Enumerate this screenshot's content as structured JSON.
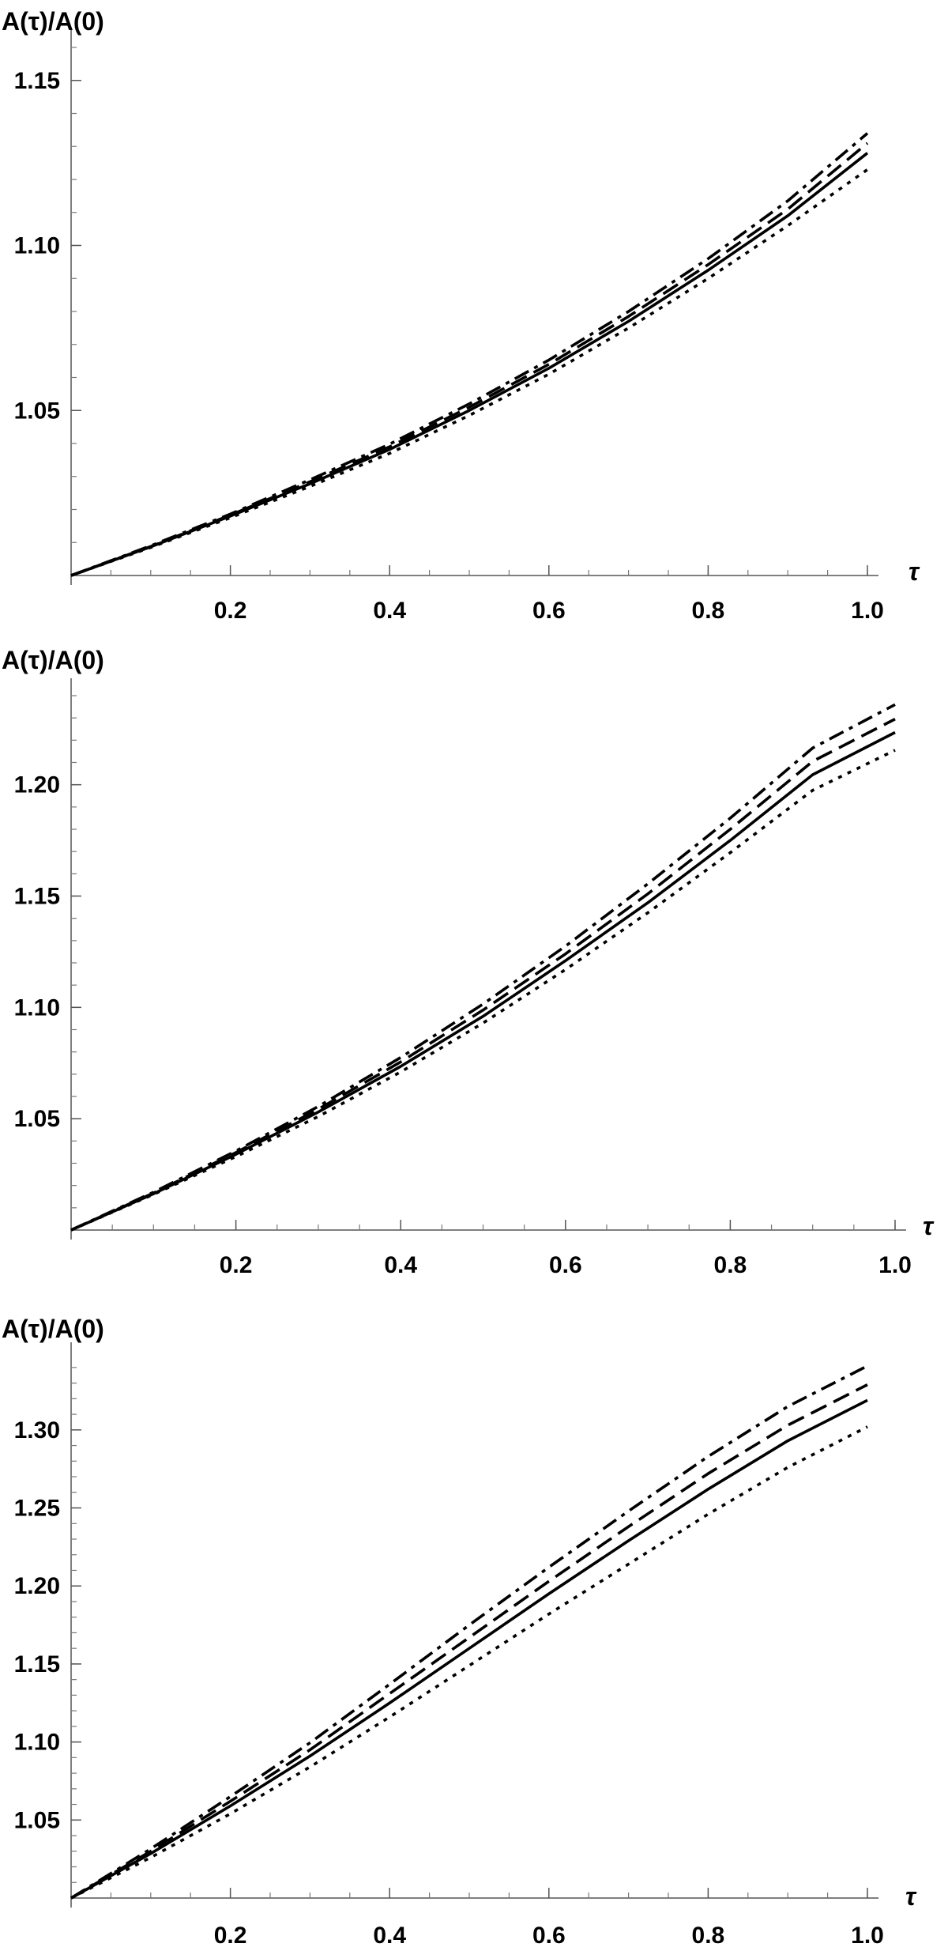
{
  "chart_data": [
    {
      "type": "line",
      "ylabel": "A(τ)/A(0)",
      "xlabel": "τ",
      "xlim": [
        0,
        1.0
      ],
      "ylim": [
        1.0,
        1.16
      ],
      "xticks": [
        0.2,
        0.4,
        0.6,
        0.8,
        1.0
      ],
      "xtick_labels": [
        "0.2",
        "0.4",
        "0.6",
        "0.8",
        "1.0"
      ],
      "yticks": [
        1.05,
        1.1,
        1.15
      ],
      "ytick_labels": [
        "1.05",
        "1.10",
        "1.15"
      ],
      "grid": false,
      "x": [
        0,
        0.1,
        0.2,
        0.3,
        0.4,
        0.5,
        0.6,
        0.7,
        0.8,
        0.9,
        1.0
      ],
      "series": [
        {
          "style": "dotted",
          "values": [
            1.0,
            1.0085,
            1.0175,
            1.027,
            1.037,
            1.0485,
            1.061,
            1.075,
            1.09,
            1.106,
            1.123
          ]
        },
        {
          "style": "solid",
          "values": [
            1.0,
            1.0087,
            1.018,
            1.0278,
            1.0382,
            1.05,
            1.0628,
            1.077,
            1.0925,
            1.109,
            1.128
          ]
        },
        {
          "style": "dashed",
          "values": [
            1.0,
            1.0088,
            1.0183,
            1.0284,
            1.039,
            1.051,
            1.064,
            1.0785,
            1.0942,
            1.111,
            1.131
          ]
        },
        {
          "style": "dashdot",
          "values": [
            1.0,
            1.009,
            1.0186,
            1.029,
            1.0398,
            1.052,
            1.0653,
            1.08,
            1.096,
            1.1135,
            1.134
          ]
        }
      ]
    },
    {
      "type": "line",
      "ylabel": "A(τ)/A(0)",
      "xlabel": "τ",
      "xlim": [
        0,
        1.0
      ],
      "ylim": [
        1.0,
        1.24
      ],
      "xticks": [
        0.2,
        0.4,
        0.6,
        0.8,
        1.0
      ],
      "xtick_labels": [
        "0.2",
        "0.4",
        "0.6",
        "0.8",
        "1.0"
      ],
      "yticks": [
        1.05,
        1.1,
        1.15,
        1.2
      ],
      "ytick_labels": [
        "1.05",
        "1.10",
        "1.15",
        "1.20"
      ],
      "grid": false,
      "x": [
        0,
        0.1,
        0.2,
        0.3,
        0.4,
        0.5,
        0.6,
        0.7,
        0.8,
        0.9,
        1.0
      ],
      "series": [
        {
          "style": "dotted",
          "values": [
            1.0,
            1.016,
            1.033,
            1.051,
            1.071,
            1.093,
            1.117,
            1.1425,
            1.1695,
            1.1975,
            1.2155
          ]
        },
        {
          "style": "solid",
          "values": [
            1.0,
            1.0163,
            1.034,
            1.053,
            1.0735,
            1.096,
            1.121,
            1.147,
            1.175,
            1.2045,
            1.2235
          ]
        },
        {
          "style": "dashed",
          "values": [
            1.0,
            1.0166,
            1.0348,
            1.0543,
            1.0755,
            1.0988,
            1.124,
            1.151,
            1.18,
            1.2105,
            1.2295
          ]
        },
        {
          "style": "dashdot",
          "values": [
            1.0,
            1.017,
            1.0355,
            1.0555,
            1.0775,
            1.1015,
            1.1275,
            1.1555,
            1.185,
            1.2165,
            1.236
          ]
        }
      ]
    },
    {
      "type": "line",
      "ylabel": "A(τ)/A(0)",
      "xlabel": "τ",
      "xlim": [
        0,
        1.0
      ],
      "ylim": [
        1.0,
        1.345
      ],
      "xticks": [
        0.2,
        0.4,
        0.6,
        0.8,
        1.0
      ],
      "xtick_labels": [
        "0.2",
        "0.4",
        "0.6",
        "0.8",
        "1.0"
      ],
      "yticks": [
        1.05,
        1.1,
        1.15,
        1.2,
        1.25,
        1.3
      ],
      "ytick_labels": [
        "1.05",
        "1.10",
        "1.15",
        "1.20",
        "1.25",
        "1.30"
      ],
      "grid": false,
      "x": [
        0,
        0.1,
        0.2,
        0.3,
        0.4,
        0.5,
        0.6,
        0.7,
        0.8,
        0.9,
        1.0
      ],
      "series": [
        {
          "style": "dotted",
          "values": [
            1.0,
            1.026,
            1.054,
            1.084,
            1.116,
            1.149,
            1.182,
            1.214,
            1.246,
            1.276,
            1.302
          ]
        },
        {
          "style": "solid",
          "values": [
            1.0,
            1.0285,
            1.059,
            1.091,
            1.125,
            1.16,
            1.195,
            1.229,
            1.262,
            1.293,
            1.319
          ]
        },
        {
          "style": "dashed",
          "values": [
            1.0,
            1.03,
            1.062,
            1.095,
            1.131,
            1.167,
            1.203,
            1.238,
            1.272,
            1.303,
            1.329
          ]
        },
        {
          "style": "dashdot",
          "values": [
            1.0,
            1.0315,
            1.065,
            1.0995,
            1.137,
            1.175,
            1.212,
            1.248,
            1.283,
            1.315,
            1.341
          ]
        }
      ]
    }
  ]
}
